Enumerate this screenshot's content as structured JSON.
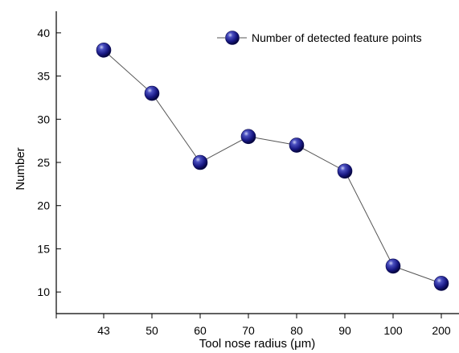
{
  "chart_data": {
    "type": "line",
    "xlabel": "Tool nose radius (μm)",
    "ylabel": "Number",
    "categories": [
      "43",
      "50",
      "60",
      "70",
      "80",
      "90",
      "100",
      "200"
    ],
    "series": [
      {
        "name": "Number of detected feature points",
        "values": [
          38,
          33,
          25,
          28,
          27,
          24,
          13,
          11
        ]
      }
    ],
    "ylim": [
      7.5,
      42.5
    ],
    "yticks": [
      10,
      15,
      20,
      25,
      30,
      35,
      40
    ],
    "grid": false,
    "legend_position": "top-right",
    "colors": {
      "marker": "#1a1a8c",
      "line": "#555555",
      "axis": "#000000"
    }
  }
}
